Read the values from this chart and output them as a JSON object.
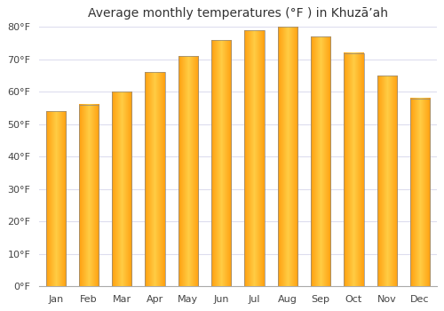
{
  "title": "Average monthly temperatures (°F ) in Khuzāʼah",
  "months": [
    "Jan",
    "Feb",
    "Mar",
    "Apr",
    "May",
    "Jun",
    "Jul",
    "Aug",
    "Sep",
    "Oct",
    "Nov",
    "Dec"
  ],
  "values": [
    54,
    56,
    60,
    66,
    71,
    76,
    79,
    80,
    77,
    72,
    65,
    58
  ],
  "ylim": [
    0,
    80
  ],
  "yticks": [
    0,
    10,
    20,
    30,
    40,
    50,
    60,
    70,
    80
  ],
  "ytick_labels": [
    "0°F",
    "10°F",
    "20°F",
    "30°F",
    "40°F",
    "50°F",
    "60°F",
    "70°F",
    "80°F"
  ],
  "background_color": "#ffffff",
  "bar_color_center": "#FFCC44",
  "bar_color_edge": "#FFA010",
  "bar_border_color": "#888888",
  "title_fontsize": 10,
  "tick_fontsize": 8,
  "grid_color": "#ddddee",
  "tick_label_color": "#444444"
}
